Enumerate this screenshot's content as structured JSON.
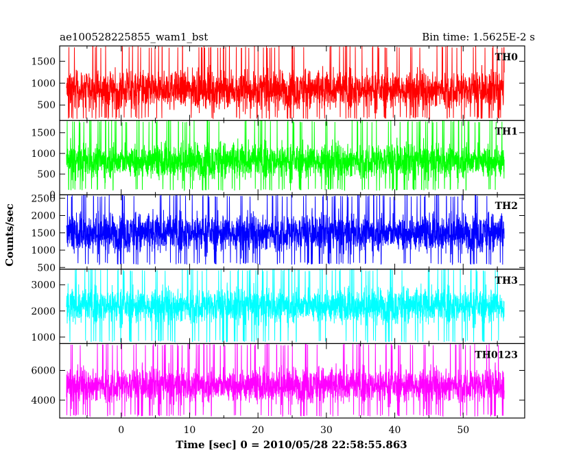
{
  "chart_data": {
    "type": "line",
    "title_left": "ae100528225855_wam1_bst",
    "title_right": "Bin time: 1.5625E-2 s",
    "xlabel": "Time [sec] 0 = 2010/05/28 22:58:55.863",
    "ylabel": "Counts/sec",
    "x_range": [
      -8.0,
      56.0
    ],
    "xlim": [
      -9.0,
      59.0
    ],
    "x_ticks": [
      0,
      10,
      20,
      30,
      40,
      50
    ],
    "bin_time_s": 0.015625,
    "panels": [
      {
        "name": "TH0",
        "color": "#ff0000",
        "ylim": [
          150,
          1850
        ],
        "yticks": [
          500,
          1000,
          1500
        ],
        "mean": 850,
        "spread": 330,
        "min": 180,
        "max": 1850
      },
      {
        "name": "TH1",
        "color": "#00ff00",
        "ylim": [
          0,
          1800
        ],
        "yticks": [
          0,
          500,
          1000,
          1500
        ],
        "mean": 820,
        "spread": 330,
        "min": 100,
        "max": 1800
      },
      {
        "name": "TH2",
        "color": "#0000ff",
        "ylim": [
          450,
          2600
        ],
        "yticks": [
          500,
          1000,
          1500,
          2000,
          2500
        ],
        "mean": 1500,
        "spread": 420,
        "min": 580,
        "max": 2600
      },
      {
        "name": "TH3",
        "color": "#00ffff",
        "ylim": [
          750,
          3600
        ],
        "yticks": [
          1000,
          2000,
          3000
        ],
        "mean": 2200,
        "spread": 520,
        "min": 800,
        "max": 3600
      },
      {
        "name": "TH0123",
        "color": "#ff00ff",
        "ylim": [
          2800,
          7800
        ],
        "yticks": [
          4000,
          6000
        ],
        "mean": 5000,
        "spread": 900,
        "min": 2900,
        "max": 7800
      }
    ]
  }
}
